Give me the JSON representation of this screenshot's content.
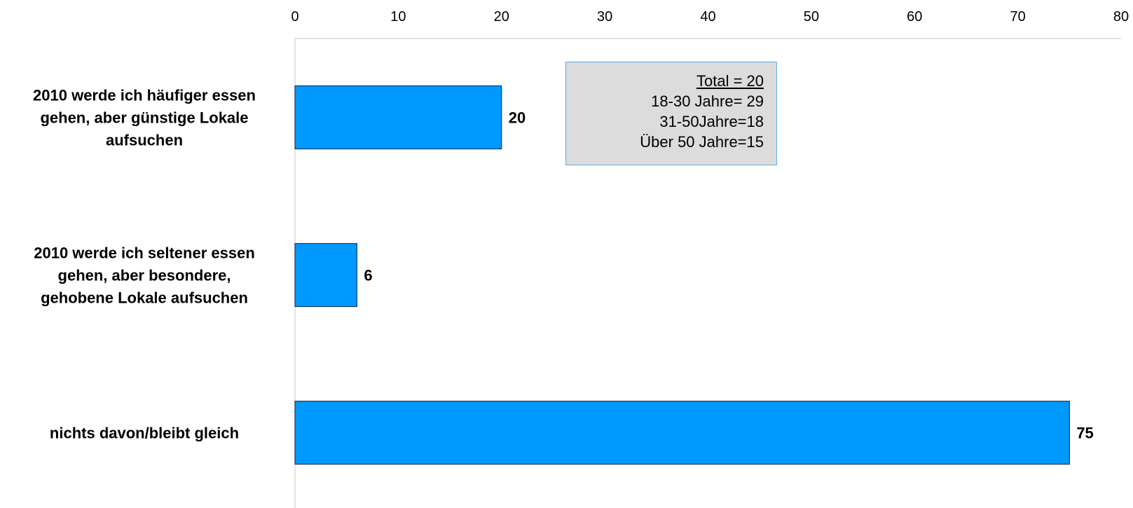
{
  "chart_data": {
    "type": "bar",
    "orientation": "horizontal",
    "categories": [
      [
        "2010 werde ich häufiger essen",
        "gehen, aber günstige Lokale",
        "aufsuchen"
      ],
      [
        "2010 werde ich seltener essen",
        "gehen, aber besondere,",
        "gehobene Lokale aufsuchen"
      ],
      [
        "nichts davon/bleibt gleich"
      ]
    ],
    "values": [
      20,
      6,
      75
    ],
    "xlim": [
      0,
      80
    ],
    "xticks": [
      "0",
      "10",
      "20",
      "30",
      "40",
      "50",
      "60",
      "70",
      "80"
    ],
    "axis_position": "top",
    "grid": false,
    "bar_color": "#0099ff",
    "bar_border_color": "#1f3a5a",
    "annotation": [
      "Total = 20",
      "18-30 Jahre= 29",
      "31-50Jahre=18",
      "Über 50 Jahre=15"
    ]
  }
}
